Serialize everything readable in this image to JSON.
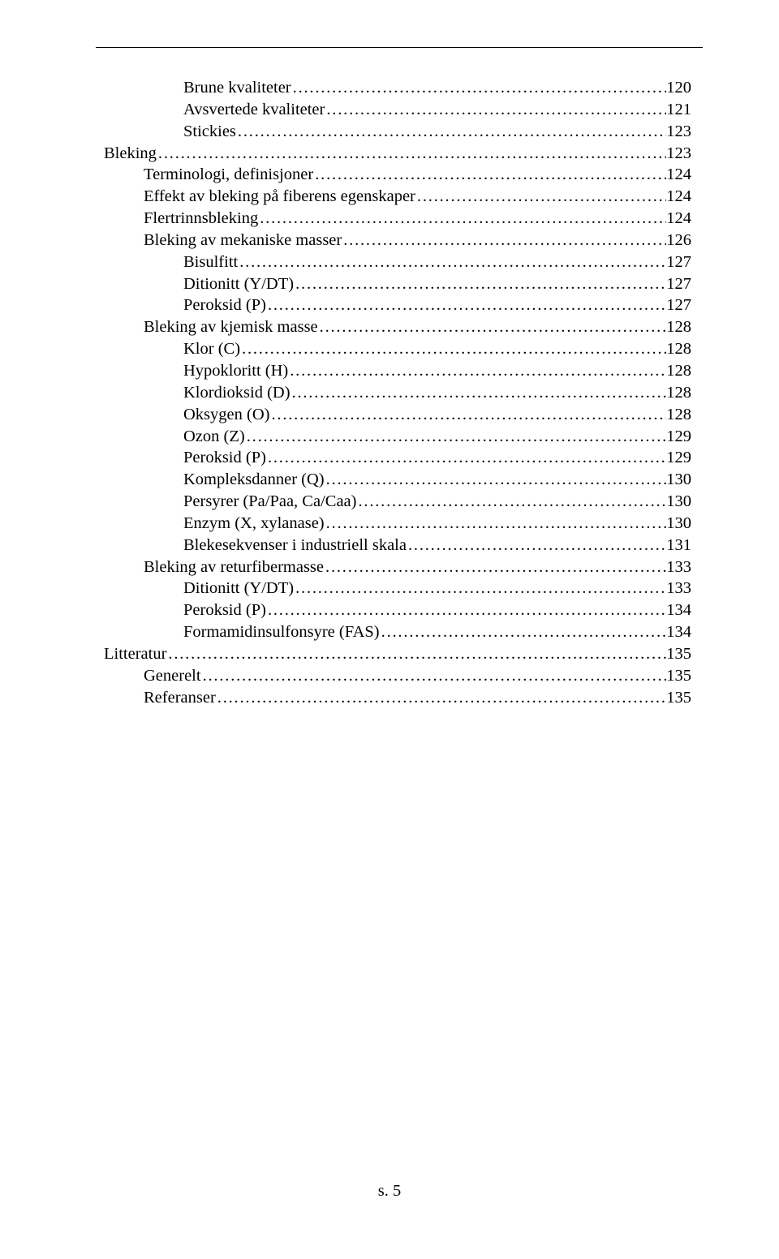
{
  "toc": [
    {
      "label": "Brune kvaliteter",
      "page": "120",
      "indent": 2
    },
    {
      "label": "Avsvertede kvaliteter",
      "page": "121",
      "indent": 2
    },
    {
      "label": "Stickies",
      "page": "123",
      "indent": 2
    },
    {
      "label": "Bleking",
      "page": "123",
      "indent": 0
    },
    {
      "label": "Terminologi, definisjoner",
      "page": "124",
      "indent": 1
    },
    {
      "label": "Effekt av bleking på fiberens egenskaper",
      "page": "124",
      "indent": 1
    },
    {
      "label": "Flertrinnsbleking",
      "page": "124",
      "indent": 1
    },
    {
      "label": "Bleking av mekaniske masser",
      "page": "126",
      "indent": 1
    },
    {
      "label": "Bisulfitt",
      "page": "127",
      "indent": 2
    },
    {
      "label": "Ditionitt (Y/DT)",
      "page": "127",
      "indent": 2
    },
    {
      "label": "Peroksid (P)",
      "page": "127",
      "indent": 2
    },
    {
      "label": "Bleking av kjemisk masse",
      "page": "128",
      "indent": 1
    },
    {
      "label": "Klor (C)",
      "page": "128",
      "indent": 2
    },
    {
      "label": "Hypokloritt (H)",
      "page": "128",
      "indent": 2
    },
    {
      "label": "Klordioksid (D)",
      "page": "128",
      "indent": 2
    },
    {
      "label": "Oksygen (O)",
      "page": "128",
      "indent": 2
    },
    {
      "label": "Ozon (Z)",
      "page": "129",
      "indent": 2
    },
    {
      "label": "Peroksid (P)",
      "page": "129",
      "indent": 2
    },
    {
      "label": "Kompleksdanner (Q)",
      "page": "130",
      "indent": 2
    },
    {
      "label": "Persyrer (Pa/Paa, Ca/Caa)",
      "page": "130",
      "indent": 2
    },
    {
      "label": "Enzym (X, xylanase)",
      "page": "130",
      "indent": 2
    },
    {
      "label": "Blekesekvenser i industriell skala",
      "page": "131",
      "indent": 2
    },
    {
      "label": "Bleking av returfibermasse",
      "page": "133",
      "indent": 1
    },
    {
      "label": "Ditionitt (Y/DT)",
      "page": "133",
      "indent": 2
    },
    {
      "label": "Peroksid (P)",
      "page": "134",
      "indent": 2
    },
    {
      "label": "Formamidinsulfonsyre (FAS)",
      "page": "134",
      "indent": 2
    },
    {
      "label": "Litteratur",
      "page": "135",
      "indent": 0
    },
    {
      "label": "Generelt",
      "page": "135",
      "indent": 1
    },
    {
      "label": "Referanser",
      "page": "135",
      "indent": 1
    }
  ],
  "footer": "s. 5"
}
